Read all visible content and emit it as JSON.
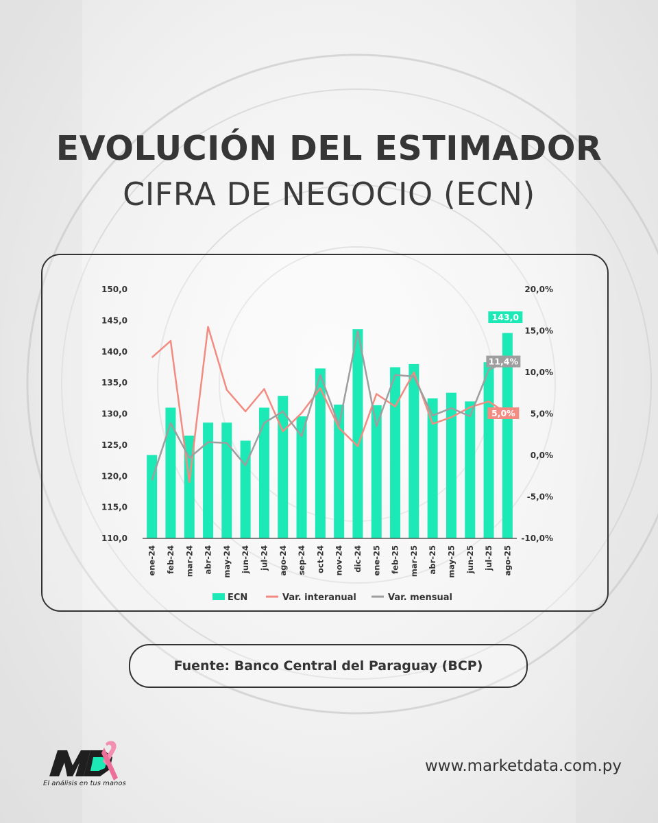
{
  "header": {
    "title": "EVOLUCIÓN DEL ESTIMADOR",
    "subtitle": "CIFRA DE NEGOCIO (ECN)"
  },
  "source": {
    "label": "Fuente: Banco Central del Paraguay (BCP)"
  },
  "footer": {
    "tagline": "El análisis en tus manos",
    "url": "www.marketdata.com.py"
  },
  "colors": {
    "bar": "#1de9b6",
    "interanual": "#f28b82",
    "mensual": "#9e9e9e",
    "text": "#333333"
  },
  "chart_data": {
    "type": "bar",
    "title": "EVOLUCIÓN DEL ESTIMADOR CIFRA DE NEGOCIO (ECN)",
    "categories": [
      "ene-24",
      "feb-24",
      "mar-24",
      "abr-24",
      "may-24",
      "jun-24",
      "jul-24",
      "ago-24",
      "sep-24",
      "oct-24",
      "nov-24",
      "dic-24",
      "ene-25",
      "feb-25",
      "mar-25",
      "abr-25",
      "may-25",
      "jun-25",
      "jul-25",
      "ago-25"
    ],
    "series": [
      {
        "name": "ECN",
        "type": "bar",
        "axis": "left",
        "values": [
          123.4,
          131.0,
          126.5,
          128.6,
          128.6,
          125.7,
          131.0,
          132.9,
          129.6,
          137.3,
          131.5,
          143.6,
          131.4,
          137.5,
          138.0,
          132.5,
          133.4,
          132.0,
          138.3,
          143.0
        ]
      },
      {
        "name": "Var. interanual",
        "type": "line",
        "axis": "right",
        "values": [
          11.8,
          13.8,
          -3.2,
          15.5,
          7.9,
          5.3,
          8.0,
          2.9,
          5.1,
          8.1,
          3.3,
          1.1,
          7.4,
          5.9,
          10.0,
          3.8,
          4.6,
          5.8,
          6.5,
          5.0
        ]
      },
      {
        "name": "Var. mensual",
        "type": "line",
        "axis": "right",
        "values": [
          -3.0,
          3.9,
          -0.3,
          1.6,
          1.5,
          -1.2,
          3.9,
          5.3,
          2.3,
          9.7,
          3.6,
          15.0,
          3.5,
          9.7,
          9.5,
          4.8,
          5.7,
          4.7,
          10.3,
          11.4
        ]
      }
    ],
    "y_left": {
      "min": 110,
      "max": 150,
      "step": 5,
      "ticks": [
        "110,0",
        "115,0",
        "120,0",
        "125,0",
        "130,0",
        "135,0",
        "140,0",
        "145,0",
        "150,0"
      ]
    },
    "y_right": {
      "min": -10,
      "max": 20,
      "step": 5,
      "ticks": [
        "-10,0%",
        "-5,0%",
        "0,0%",
        "5,0%",
        "10,0%",
        "15,0%",
        "20,0%"
      ]
    },
    "data_labels": [
      {
        "series": "ECN",
        "index": 19,
        "text": "143,0"
      },
      {
        "series": "Var. mensual",
        "index": 19,
        "text": "11,4%"
      },
      {
        "series": "Var. interanual",
        "index": 19,
        "text": "5,0%"
      }
    ],
    "legend": {
      "position": "bottom",
      "entries": [
        "ECN",
        "Var. interanual",
        "Var. mensual"
      ]
    },
    "grid": false
  }
}
